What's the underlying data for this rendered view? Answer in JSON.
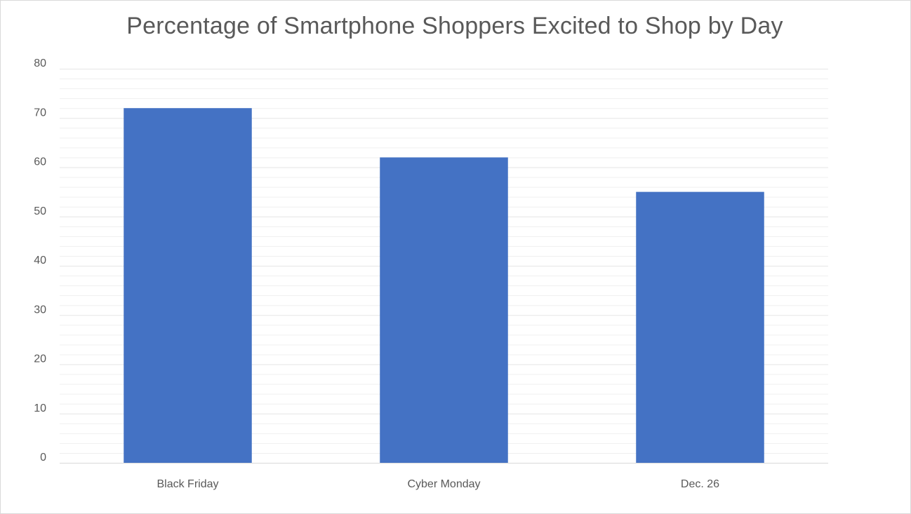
{
  "chart_data": {
    "type": "bar",
    "title": "Percentage of Smartphone Shoppers Excited to Shop by Day",
    "categories": [
      "Black Friday",
      "Cyber Monday",
      "Dec. 26"
    ],
    "values": [
      72,
      62,
      55
    ],
    "ylim": [
      0,
      80
    ],
    "y_ticks": [
      "0",
      "10",
      "20",
      "30",
      "40",
      "50",
      "60",
      "70",
      "80"
    ],
    "xlabel": "",
    "ylabel": "",
    "grid": true,
    "minor_grid": true,
    "bar_color": "#4472C4",
    "gridline_color": "#e6e6e6",
    "legend": "none"
  }
}
